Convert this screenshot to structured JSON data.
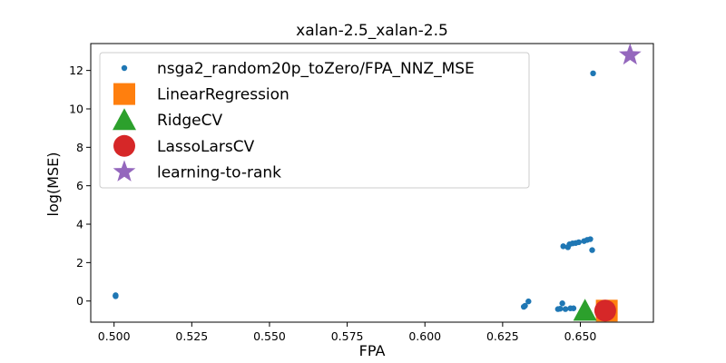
{
  "chart_data": {
    "type": "scatter",
    "title": "xalan-2.5_xalan-2.5",
    "xlabel": "FPA",
    "ylabel": "log(MSE)",
    "xlim": [
      0.4925,
      0.6735
    ],
    "ylim": [
      -1.1,
      13.4
    ],
    "x_ticks": [
      0.5,
      0.525,
      0.55,
      0.575,
      0.6,
      0.625,
      0.65
    ],
    "x_tick_labels": [
      "0.500",
      "0.525",
      "0.550",
      "0.575",
      "0.600",
      "0.625",
      "0.650"
    ],
    "y_ticks": [
      0,
      2,
      4,
      6,
      8,
      10,
      12
    ],
    "y_tick_labels": [
      "0",
      "2",
      "4",
      "6",
      "8",
      "10",
      "12"
    ],
    "grid": false,
    "legend_position": "top-left",
    "series": [
      {
        "name": "nsga2_random20p_toZero/FPA_NNZ_MSE",
        "marker": "dot",
        "color": "#1f77b4",
        "points": [
          [
            0.5005,
            0.25
          ],
          [
            0.5005,
            0.3
          ],
          [
            0.5005,
            0.27
          ],
          [
            0.6318,
            -0.3
          ],
          [
            0.6322,
            -0.25
          ],
          [
            0.6333,
            -0.02
          ],
          [
            0.6428,
            -0.42
          ],
          [
            0.6435,
            -0.4
          ],
          [
            0.6442,
            -0.12
          ],
          [
            0.6452,
            -0.42
          ],
          [
            0.6468,
            -0.38
          ],
          [
            0.6478,
            -0.38
          ],
          [
            0.6445,
            2.85
          ],
          [
            0.646,
            2.8
          ],
          [
            0.6465,
            2.95
          ],
          [
            0.6475,
            3.0
          ],
          [
            0.6485,
            3.02
          ],
          [
            0.6495,
            3.06
          ],
          [
            0.6512,
            3.12
          ],
          [
            0.6522,
            3.18
          ],
          [
            0.6532,
            3.22
          ],
          [
            0.6538,
            2.65
          ],
          [
            0.6541,
            11.85
          ]
        ]
      },
      {
        "name": "LinearRegression",
        "marker": "square",
        "color": "#ff7f0e",
        "points": [
          [
            0.6585,
            -0.5
          ]
        ]
      },
      {
        "name": "RidgeCV",
        "marker": "triangle",
        "color": "#2ca02c",
        "points": [
          [
            0.6515,
            -0.5
          ]
        ]
      },
      {
        "name": "LassoLarsCV",
        "marker": "circle",
        "color": "#d62728",
        "points": [
          [
            0.658,
            -0.5
          ]
        ]
      },
      {
        "name": "learning-to-rank",
        "marker": "star",
        "color": "#9467bd",
        "points": [
          [
            0.666,
            12.8
          ]
        ]
      }
    ]
  }
}
